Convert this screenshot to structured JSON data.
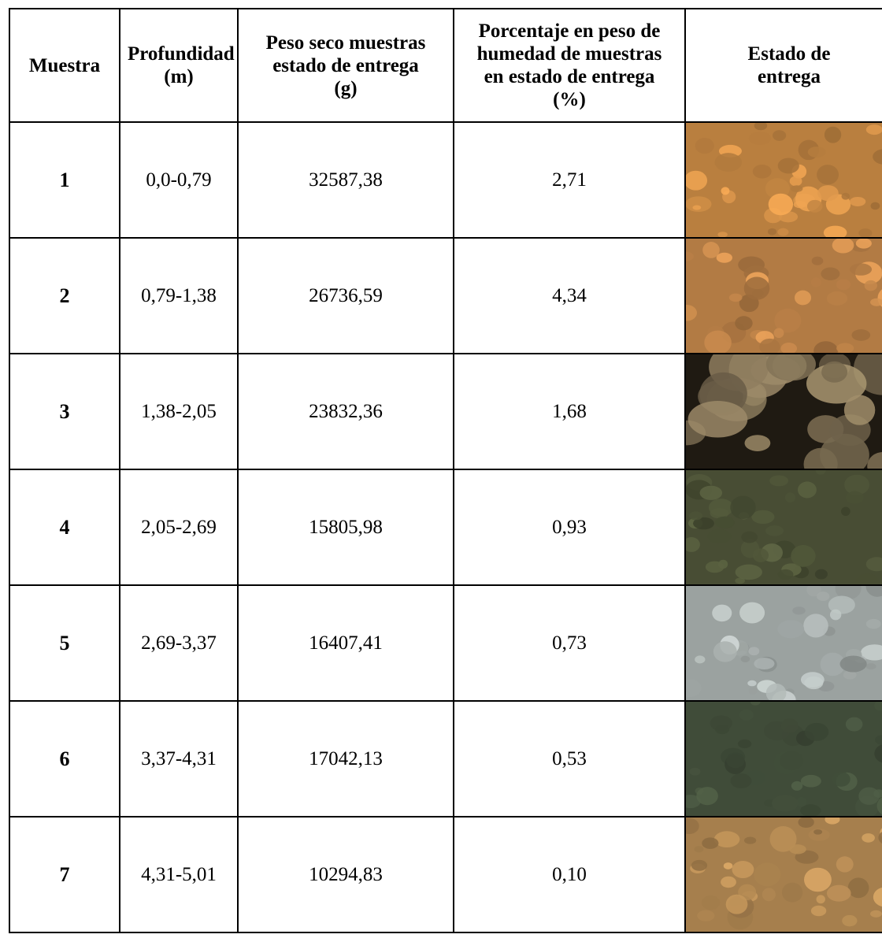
{
  "table": {
    "headers": {
      "muestra": "Muestra",
      "profundidad": "Profundidad (m)",
      "peso_seco": "Peso seco muestras estado de entrega (g)",
      "porcentaje": "Porcentaje en peso de humedad de muestras en estado de entrega (%)",
      "estado": "Estado de entrega"
    },
    "rows": [
      {
        "muestra": "1",
        "profundidad": "0,0-0,79",
        "peso_seco": "32587,38",
        "porcentaje": "2,71",
        "photo_color": "#c98a45"
      },
      {
        "muestra": "2",
        "profundidad": "0,79-1,38",
        "peso_seco": "26736,59",
        "porcentaje": "4,34",
        "photo_color": "#c2864a"
      },
      {
        "muestra": "3",
        "profundidad": "1,38-2,05",
        "peso_seco": "23832,36",
        "porcentaje": "1,68",
        "photo_color": "#8a7a5c"
      },
      {
        "muestra": "4",
        "profundidad": "2,05-2,69",
        "peso_seco": "15805,98",
        "porcentaje": "0,93",
        "photo_color": "#4e5438"
      },
      {
        "muestra": "5",
        "profundidad": "2,69-3,37",
        "peso_seco": "16407,41",
        "porcentaje": "0,73",
        "photo_color": "#a9b0ae"
      },
      {
        "muestra": "6",
        "profundidad": "3,37-4,31",
        "peso_seco": "17042,13",
        "porcentaje": "0,53",
        "photo_color": "#46533e"
      },
      {
        "muestra": "7",
        "profundidad": "4,31-5,01",
        "peso_seco": "10294,83",
        "porcentaje": "0,10",
        "photo_color": "#b48a54"
      }
    ]
  }
}
